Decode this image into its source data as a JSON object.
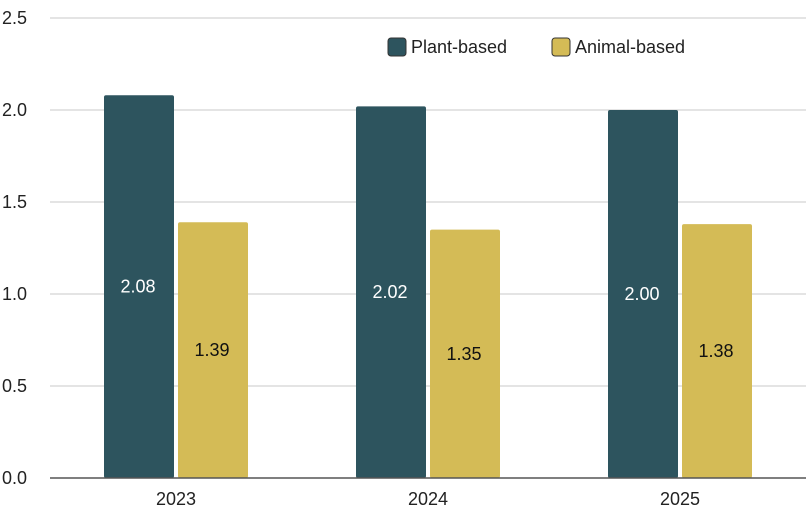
{
  "chart_data": {
    "type": "bar",
    "title": "",
    "xlabel": "",
    "ylabel": "",
    "categories": [
      "2023",
      "2024",
      "2025"
    ],
    "series": [
      {
        "name": "Plant-based",
        "values": [
          2.08,
          2.02,
          2.0
        ],
        "labels": [
          "2.08",
          "2.02",
          "2.00"
        ],
        "color": "#2d545e",
        "label_color": "#ffffff"
      },
      {
        "name": "Animal-based",
        "values": [
          1.39,
          1.35,
          1.38
        ],
        "labels": [
          "1.39",
          "1.35",
          "1.38"
        ],
        "color": "#d4bb56",
        "label_color": "#111111"
      }
    ],
    "ylim": [
      0,
      2.5
    ],
    "yticks": [
      0,
      0.5,
      1,
      1.5,
      2,
      2.5
    ],
    "ytick_labels": [
      "0.0",
      "0.5",
      "1.0",
      "1.5",
      "2.0",
      "2.5"
    ],
    "grid": "horizontal",
    "legend_position": "top-right",
    "gridline_color": "#d4d4d4",
    "axis_color": "#555555"
  }
}
